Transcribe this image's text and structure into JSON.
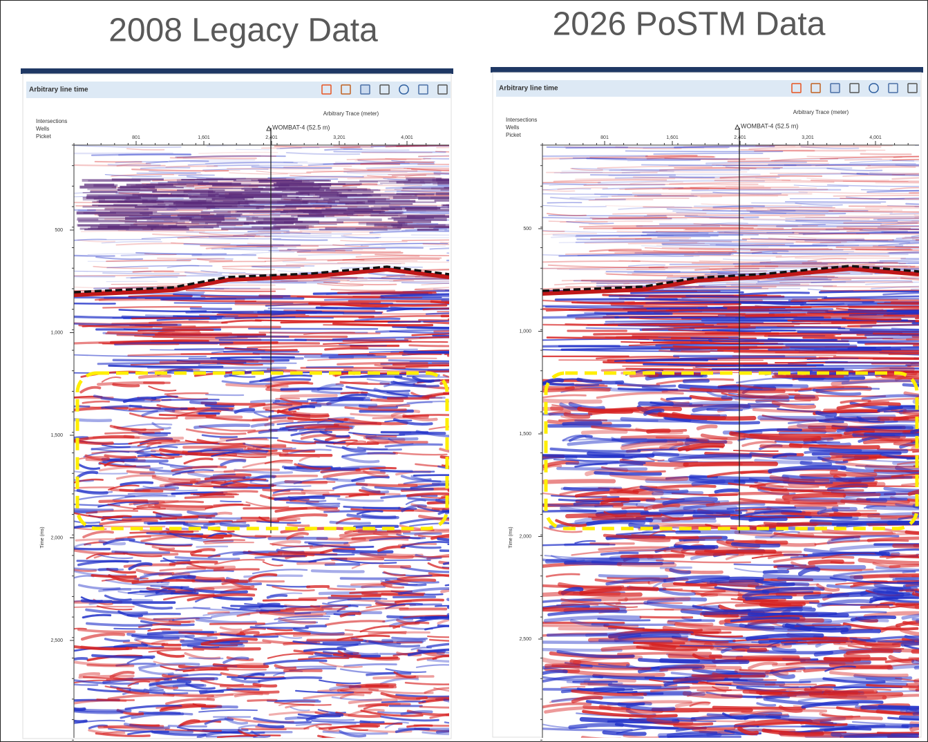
{
  "panels": [
    {
      "title": "2008 Legacy Data",
      "header": "Arbitrary line time",
      "axis_title": "Arbitrary Trace (meter)",
      "rows": [
        "Intersections",
        "Wells",
        "Picket"
      ],
      "well": "WOMBAT-4 (52.5 m)",
      "xticks": [
        "801",
        "1,601",
        "2,401",
        "3,201",
        "4,001"
      ],
      "yticks": [
        "500",
        "1,000",
        "1,500",
        "2,000",
        "2,500"
      ],
      "y_label": "Time (ms)"
    },
    {
      "title": "2026 PoSTM Data",
      "header": "Arbitrary line time",
      "axis_title": "Arbitrary Trace (meter)",
      "rows": [
        "Intersections",
        "Wells",
        "Picket"
      ],
      "well": "WOMBAT-4 (52.5 m)",
      "xticks": [
        "801",
        "1,601",
        "2,401",
        "3,201",
        "4,001"
      ],
      "yticks": [
        "500",
        "1,000",
        "1,500",
        "2,000",
        "2,500"
      ],
      "y_label": "Time (ms)"
    }
  ]
}
